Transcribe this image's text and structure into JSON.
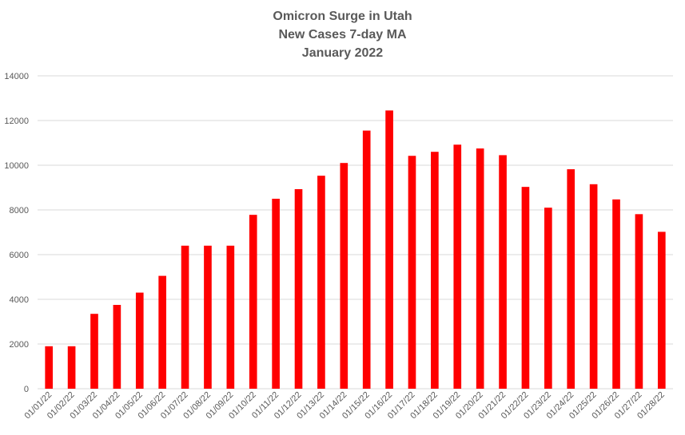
{
  "chart_data": {
    "type": "bar",
    "title": [
      "Omicron Surge in Utah",
      "New Cases 7-day MA",
      "January 2022"
    ],
    "xlabel": "",
    "ylabel": "",
    "ylim": [
      0,
      14000
    ],
    "yticks": [
      0,
      2000,
      4000,
      6000,
      8000,
      10000,
      12000,
      14000
    ],
    "grid": true,
    "legend": "none",
    "bar_color": "#ff0000",
    "gridline_color": "#d9d9d9",
    "categories": [
      "01/01/22",
      "01/02/22",
      "01/03/22",
      "01/04/22",
      "01/05/22",
      "01/06/22",
      "01/07/22",
      "01/08/22",
      "01/09/22",
      "01/10/22",
      "01/11/22",
      "01/12/22",
      "01/13/22",
      "01/14/22",
      "01/15/22",
      "01/16/22",
      "01/17/22",
      "01/18/22",
      "01/19/22",
      "01/20/22",
      "01/21/22",
      "01/22/22",
      "01/23/22",
      "01/24/22",
      "01/25/22",
      "01/26/22",
      "01/27/22",
      "01/28/22"
    ],
    "values": [
      1900,
      1900,
      3350,
      3750,
      4300,
      5050,
      6400,
      6400,
      6400,
      7780,
      8500,
      8930,
      9530,
      10100,
      11550,
      12450,
      10420,
      10600,
      10920,
      10750,
      10450,
      9030,
      8100,
      9820,
      9150,
      8470,
      7810,
      7020
    ]
  }
}
